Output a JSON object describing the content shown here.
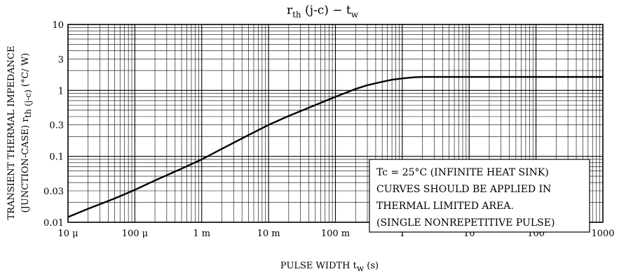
{
  "chart_data": {
    "type": "line",
    "title": {
      "main": "r",
      "main_sub": "th",
      "mid": " (j-c)  −  t",
      "end_sub": "w"
    },
    "xlabel": {
      "main": "PULSE WIDTH   t",
      "sub": "w",
      "unit": "   (s)"
    },
    "ylabel": {
      "line1": "TRANSIENT THERMAL IMPEDANCE",
      "line2_a": "(JUNCTION-CASE)   r",
      "line2_sub": "th (j-c)",
      "line2_b": "   (°C/ W)"
    },
    "x_scale": "log",
    "y_scale": "log",
    "xlim": [
      1e-05,
      1000
    ],
    "ylim": [
      0.01,
      10
    ],
    "x_ticks": [
      {
        "value": 1e-05,
        "label": "10 μ"
      },
      {
        "value": 0.0001,
        "label": "100 μ"
      },
      {
        "value": 0.001,
        "label": "1 m"
      },
      {
        "value": 0.01,
        "label": "10 m"
      },
      {
        "value": 0.1,
        "label": "100 m"
      },
      {
        "value": 1,
        "label": "1"
      },
      {
        "value": 10,
        "label": "10"
      },
      {
        "value": 100,
        "label": "100"
      },
      {
        "value": 1000,
        "label": "1000"
      }
    ],
    "y_ticks": [
      {
        "value": 0.01,
        "label": "0.01"
      },
      {
        "value": 0.03,
        "label": "0.03"
      },
      {
        "value": 0.1,
        "label": "0.1"
      },
      {
        "value": 0.3,
        "label": "0.3"
      },
      {
        "value": 1,
        "label": "1"
      },
      {
        "value": 3,
        "label": "3"
      },
      {
        "value": 10,
        "label": "10"
      }
    ],
    "grid": true,
    "series": [
      {
        "x": [
          1e-05,
          2e-05,
          5e-05,
          0.0001,
          0.0002,
          0.0005,
          0.001,
          0.002,
          0.005,
          0.01,
          0.02,
          0.05,
          0.1,
          0.2,
          0.3,
          0.5,
          0.7,
          1,
          1.5,
          2,
          10,
          100,
          1000
        ],
        "y": [
          0.012,
          0.016,
          0.023,
          0.031,
          0.043,
          0.065,
          0.09,
          0.13,
          0.21,
          0.3,
          0.41,
          0.6,
          0.8,
          1.05,
          1.2,
          1.35,
          1.45,
          1.52,
          1.58,
          1.6,
          1.6,
          1.6,
          1.6
        ]
      }
    ],
    "annotation": [
      "Tc = 25°C (INFINITE HEAT SINK)",
      "CURVES SHOULD BE APPLIED IN",
      "THERMAL LIMITED AREA.",
      "(SINGLE NONREPETITIVE PULSE)"
    ]
  }
}
